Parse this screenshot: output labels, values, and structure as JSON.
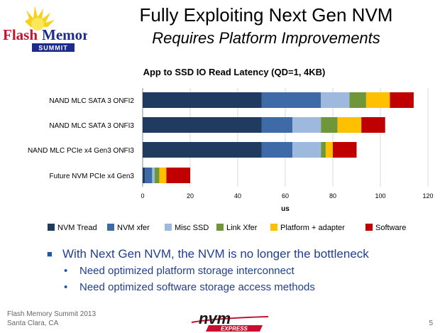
{
  "slide": {
    "title": "Fully Exploiting Next Gen NVM",
    "subtitle": "Requires Platform Improvements",
    "bullets": [
      {
        "text": "With Next Gen NVM, the NVM is no longer the bottleneck",
        "level": 1
      },
      {
        "text": "Need optimized platform storage interconnect",
        "level": 2
      },
      {
        "text": "Need optimized software storage access methods",
        "level": 2
      }
    ],
    "footer_line1": "Flash Memory Summit 2013",
    "footer_line2": "Santa Clara, CA",
    "page_number": "5"
  },
  "logos": {
    "fms_flash": "Flash",
    "fms_memory": "Memory",
    "fms_summit": "SUMMIT",
    "nvm": "nvm",
    "express": "EXPRESS"
  },
  "chart_data": {
    "type": "bar",
    "orientation": "horizontal",
    "stacked": true,
    "title": "App to SSD IO Read  Latency (QD=1, 4KB)",
    "xlabel": "us",
    "ylabel": "",
    "xlim": [
      0,
      120
    ],
    "xticks": [
      0,
      20,
      40,
      60,
      80,
      100,
      120
    ],
    "grid": true,
    "legend_position": "bottom",
    "categories": [
      "NAND MLC SATA 3  ONFI2",
      "NAND MLC SATA 3 ONFI3",
      "NAND MLC PCIe x4 Gen3 ONFI3",
      "Future NVM PCIe x4 Gen3"
    ],
    "series": [
      {
        "name": "NVM Tread",
        "color": "#1f3b5f",
        "values": [
          50,
          50,
          50,
          1
        ]
      },
      {
        "name": "NVM xfer",
        "color": "#3e6aa8",
        "values": [
          25,
          13,
          13,
          3
        ]
      },
      {
        "name": "Misc SSD",
        "color": "#9dbade",
        "values": [
          12,
          12,
          12,
          1
        ]
      },
      {
        "name": "Link Xfer",
        "color": "#6f973a",
        "values": [
          7,
          7,
          2,
          2
        ]
      },
      {
        "name": "Platform + adapter",
        "color": "#ffc000",
        "values": [
          10,
          10,
          3,
          3
        ]
      },
      {
        "name": "Software",
        "color": "#c00000",
        "values": [
          10,
          10,
          10,
          10
        ]
      }
    ]
  }
}
